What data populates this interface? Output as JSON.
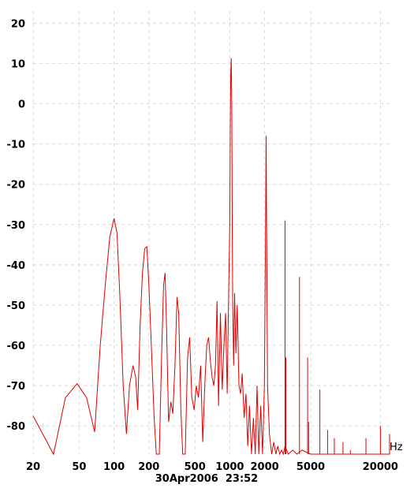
{
  "chart_data": {
    "type": "line",
    "x_scale": "log",
    "x_unit": "Hz",
    "xlim": [
      20,
      24000
    ],
    "ylim": [
      -87,
      23
    ],
    "grid": true,
    "timestamp": "30Apr2006  23:52",
    "y_ticks": [
      20,
      10,
      0,
      -10,
      -20,
      -30,
      -40,
      -50,
      -60,
      -70,
      -80
    ],
    "x_ticks": [
      {
        "value": 20,
        "label": "20"
      },
      {
        "value": 50,
        "label": "50"
      },
      {
        "value": 100,
        "label": "100"
      },
      {
        "value": 200,
        "label": "200"
      },
      {
        "value": 500,
        "label": "500"
      },
      {
        "value": 1000,
        "label": "1000"
      },
      {
        "value": 2000,
        "label": "2000"
      },
      {
        "value": 5000,
        "label": "5000"
      },
      {
        "value": 20000,
        "label": "20000"
      }
    ],
    "x_grid": [
      20,
      50,
      100,
      200,
      500,
      1000,
      2000,
      5000,
      20000
    ],
    "series": [
      {
        "color": "#e00000",
        "points": [
          [
            20,
            -77.5
          ],
          [
            30,
            -87
          ],
          [
            38,
            -73
          ],
          [
            48,
            -69.5
          ],
          [
            58,
            -73
          ],
          [
            68,
            -81.5
          ],
          [
            76,
            -60
          ],
          [
            84,
            -45
          ],
          [
            92,
            -33
          ],
          [
            100,
            -28.5
          ],
          [
            106,
            -32
          ],
          [
            112,
            -47
          ],
          [
            120,
            -70
          ],
          [
            128,
            -82
          ],
          [
            136,
            -70
          ],
          [
            146,
            -65
          ],
          [
            154,
            -68
          ],
          [
            160,
            -76
          ],
          [
            168,
            -55
          ],
          [
            176,
            -42
          ],
          [
            184,
            -36
          ],
          [
            192,
            -35.5
          ],
          [
            200,
            -45
          ],
          [
            210,
            -60
          ],
          [
            222,
            -78
          ],
          [
            232,
            -87
          ],
          [
            246,
            -87
          ],
          [
            258,
            -62
          ],
          [
            268,
            -45
          ],
          [
            276,
            -42
          ],
          [
            284,
            -55
          ],
          [
            296,
            -79
          ],
          [
            310,
            -74
          ],
          [
            322,
            -77
          ],
          [
            336,
            -65
          ],
          [
            350,
            -48
          ],
          [
            362,
            -52
          ],
          [
            378,
            -76
          ],
          [
            392,
            -87
          ],
          [
            412,
            -87
          ],
          [
            432,
            -63
          ],
          [
            450,
            -58
          ],
          [
            470,
            -73
          ],
          [
            492,
            -76
          ],
          [
            514,
            -70
          ],
          [
            536,
            -73
          ],
          [
            560,
            -65
          ],
          [
            584,
            -84
          ],
          [
            608,
            -70
          ],
          [
            632,
            -60
          ],
          [
            656,
            -58
          ],
          [
            680,
            -64
          ],
          [
            704,
            -68
          ],
          [
            728,
            -70
          ],
          [
            752,
            -65
          ],
          [
            776,
            -49
          ],
          [
            800,
            -75
          ],
          [
            830,
            -52
          ],
          [
            860,
            -71
          ],
          [
            890,
            -60
          ],
          [
            920,
            -52
          ],
          [
            950,
            -72
          ],
          [
            980,
            -45
          ],
          [
            1000,
            -30
          ],
          [
            1010,
            -5
          ],
          [
            1020,
            8
          ],
          [
            1030,
            11.3
          ],
          [
            1040,
            0
          ],
          [
            1050,
            -30
          ],
          [
            1060,
            -50
          ],
          [
            1080,
            -65
          ],
          [
            1100,
            -47
          ],
          [
            1130,
            -62
          ],
          [
            1160,
            -50
          ],
          [
            1200,
            -70
          ],
          [
            1240,
            -72
          ],
          [
            1280,
            -67
          ],
          [
            1330,
            -78
          ],
          [
            1380,
            -72
          ],
          [
            1430,
            -85
          ],
          [
            1480,
            -75
          ],
          [
            1540,
            -87
          ],
          [
            1600,
            -78
          ],
          [
            1660,
            -87
          ],
          [
            1720,
            -70
          ],
          [
            1780,
            -87
          ],
          [
            1850,
            -75
          ],
          [
            1920,
            -87
          ],
          [
            1990,
            -70
          ],
          [
            2040,
            -30
          ],
          [
            2060,
            -8
          ],
          [
            2080,
            -30
          ],
          [
            2120,
            -70
          ],
          [
            2200,
            -82
          ],
          [
            2300,
            -87
          ],
          [
            2400,
            -84
          ],
          [
            2500,
            -87
          ],
          [
            2600,
            -85
          ],
          [
            2700,
            -87
          ],
          [
            2800,
            -86
          ],
          [
            2900,
            -87
          ],
          [
            3000,
            -85
          ],
          [
            3200,
            -87
          ],
          [
            3500,
            -86
          ],
          [
            3800,
            -87
          ],
          [
            4200,
            -86
          ],
          [
            5000,
            -87
          ],
          [
            6000,
            -87
          ],
          [
            8000,
            -87
          ],
          [
            12000,
            -87
          ],
          [
            20000,
            -87
          ],
          [
            24000,
            -87
          ]
        ],
        "spikes": [
          [
            3000,
            -29
          ],
          [
            3050,
            -63
          ],
          [
            4000,
            -43
          ],
          [
            4700,
            -63
          ],
          [
            4800,
            -79
          ],
          [
            6000,
            -71
          ],
          [
            7000,
            -81
          ],
          [
            8000,
            -83
          ],
          [
            9500,
            -84
          ],
          [
            11000,
            -86
          ],
          [
            15000,
            -83
          ],
          [
            20000,
            -80
          ],
          [
            24000,
            -82
          ]
        ]
      }
    ]
  }
}
